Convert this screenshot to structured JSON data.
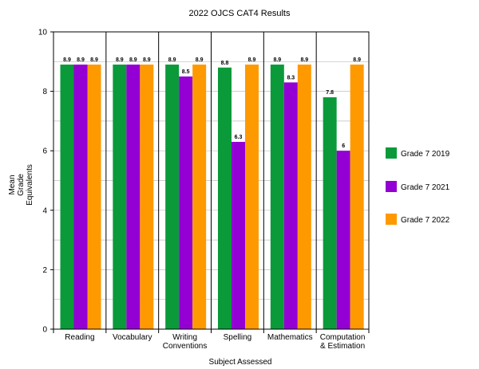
{
  "chart_data": {
    "type": "bar",
    "title": "2022 OJCS CAT4 Results",
    "xlabel": "Subject Assessed",
    "ylabel": [
      "Mean",
      "Grade",
      "Equivalents"
    ],
    "ylim": [
      0,
      10
    ],
    "yticks": [
      0,
      2,
      4,
      6,
      8,
      10
    ],
    "grid": true,
    "legend_position": "right",
    "categories": [
      [
        "Reading"
      ],
      [
        "Vocabulary"
      ],
      [
        "Writing",
        "Conventions"
      ],
      [
        "Spelling"
      ],
      [
        "Mathematics"
      ],
      [
        "Computation",
        "& Estimation"
      ]
    ],
    "series": [
      {
        "name": "Grade 7 2019",
        "color": "#0a9a3a",
        "values": [
          8.9,
          8.9,
          8.9,
          8.8,
          8.9,
          7.8
        ]
      },
      {
        "name": "Grade 7 2021",
        "color": "#9400d3",
        "values": [
          8.9,
          8.9,
          8.5,
          6.3,
          8.3,
          6
        ]
      },
      {
        "name": "Grade 7 2022",
        "color": "#ff9900",
        "values": [
          8.9,
          8.9,
          8.9,
          8.9,
          8.9,
          8.9
        ]
      }
    ]
  }
}
